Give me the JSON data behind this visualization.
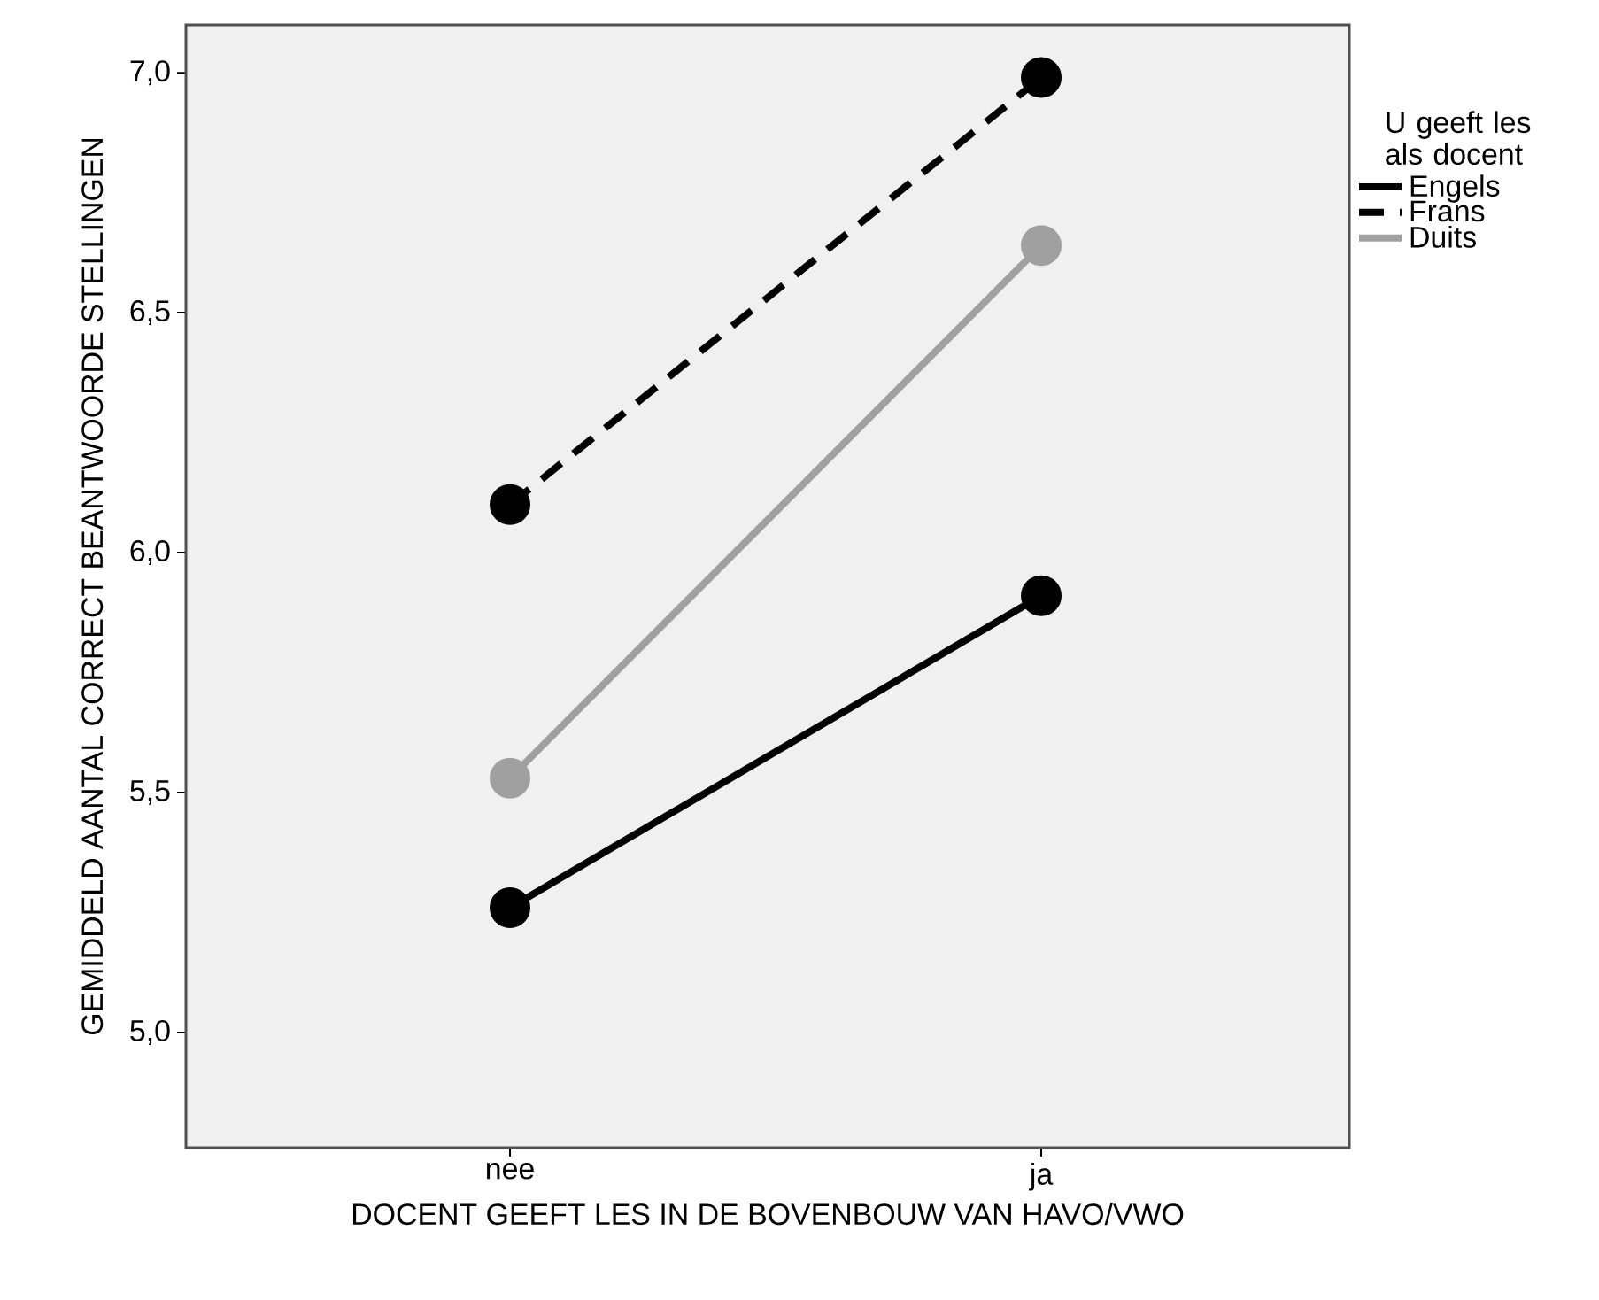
{
  "chart_data": {
    "type": "line",
    "xlabel": "DOCENT GEEFT LES IN DE BOVENBOUW VAN HAVO/VWO",
    "ylabel": "GEMIDDELD AANTAL CORRECT BEANTWOORDE STELLINGEN",
    "legend_title": "U geeft les als docent",
    "categories": [
      "nee",
      "ja"
    ],
    "series": [
      {
        "name": "Engels",
        "color": "#000000",
        "values": [
          5.26,
          5.91
        ],
        "line_style": "solid"
      },
      {
        "name": "Frans",
        "color": "#000000",
        "values": [
          6.1,
          6.99
        ],
        "line_style": "dashed"
      },
      {
        "name": "Duits",
        "color": "#a0a0a0",
        "values": [
          5.53,
          6.64
        ],
        "line_style": "solid"
      }
    ],
    "ylim": [
      4.76,
      7.1
    ],
    "yticks": [
      {
        "value": 5.0,
        "label": "5,0"
      },
      {
        "value": 5.5,
        "label": "5,5"
      },
      {
        "value": 6.0,
        "label": "6,0"
      },
      {
        "value": 6.5,
        "label": "6,5"
      },
      {
        "value": 7.0,
        "label": "7,0"
      }
    ],
    "grid": false,
    "legend": "right",
    "marker": "circle"
  }
}
